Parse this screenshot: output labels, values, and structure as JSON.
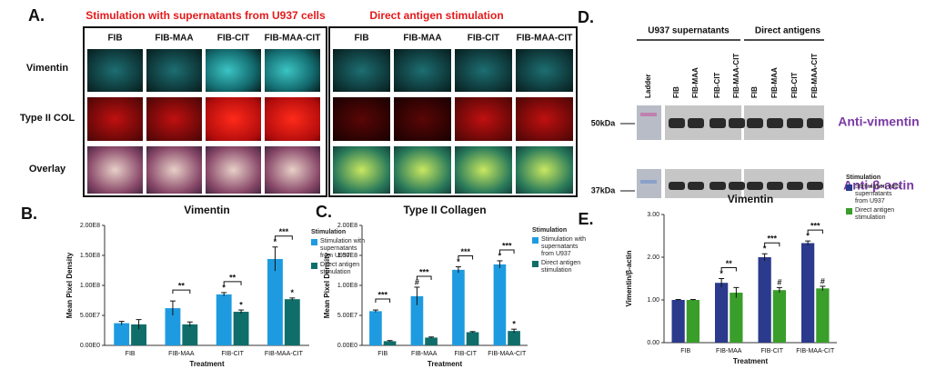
{
  "figure": {
    "panel_letters": [
      "A.",
      "B.",
      "C.",
      "D.",
      "E."
    ],
    "panel_a": {
      "headers": [
        "Stimulation with supernatants from U937 cells",
        "Direct antigen stimulation"
      ],
      "columns": [
        "FIB",
        "FIB-MAA",
        "FIB-CIT",
        "FIB-MAA-CIT",
        "FIB",
        "FIB-MAA",
        "FIB-CIT",
        "FIB-MAA-CIT"
      ],
      "rows": [
        "Vimentin",
        "Type II COL",
        "Overlay"
      ]
    },
    "panel_d": {
      "groups": [
        "U937 supernatants",
        "Direct antigens"
      ],
      "lanes": [
        "Ladder",
        "FIB",
        "FIB-MAA",
        "FIB-CIT",
        "FIB-MAA-CIT",
        "FIB",
        "FIB-MAA",
        "FIB-CIT",
        "FIB-MAA-CIT"
      ],
      "markers": [
        "50kDa",
        "37kDa"
      ],
      "antibodies": [
        "Anti-vimentin",
        "Anti-β-actin"
      ]
    }
  },
  "chart_data": [
    {
      "type": "bar",
      "title": "Vimentin",
      "ylabel": "Mean Pixel Density",
      "xlabel": "Treatment",
      "legend_title": "Stimulation",
      "categories": [
        "FIB",
        "FIB-MAA",
        "FIB-CIT",
        "FIB-MAA-CIT"
      ],
      "series": [
        {
          "name": "Stimulation with supernatants from U937",
          "color": "#1e9be0",
          "values": [
            37000000,
            62000000,
            85000000,
            144000000
          ],
          "errors": [
            3000000,
            12000000,
            3000000,
            20000000
          ],
          "markers": [
            null,
            null,
            "*",
            "*"
          ]
        },
        {
          "name": "Direct antigen stimulation",
          "color": "#0f6e6a",
          "values": [
            35000000,
            35000000,
            56000000,
            77000000
          ],
          "errors": [
            8000000,
            4000000,
            3000000,
            2000000
          ],
          "markers": [
            null,
            null,
            "*",
            "*"
          ]
        }
      ],
      "significance": [
        null,
        "**",
        "**",
        "***"
      ],
      "ylim": [
        0,
        200000000
      ],
      "yticks": [
        {
          "value": 0,
          "label": "0.00E0"
        },
        {
          "value": 50000000,
          "label": "5.00E7"
        },
        {
          "value": 100000000,
          "label": "1.00E8"
        },
        {
          "value": 150000000,
          "label": "1.50E8"
        },
        {
          "value": 200000000,
          "label": "2.00E8"
        }
      ]
    },
    {
      "type": "bar",
      "title": "Type II Collagen",
      "ylabel": "Mean Pixel Density",
      "xlabel": "Treatment",
      "legend_title": "Stimulation",
      "categories": [
        "FIB",
        "FIB-MAA",
        "FIB-CIT",
        "FIB-MAA-CIT"
      ],
      "series": [
        {
          "name": "Stimulation with supernatants from U937",
          "color": "#1e9be0",
          "values": [
            57000000,
            82000000,
            126000000,
            135000000
          ],
          "errors": [
            2000000,
            15000000,
            5000000,
            6000000
          ],
          "markers": [
            null,
            "#",
            "*",
            "*"
          ]
        },
        {
          "name": "Direct antigen stimulation",
          "color": "#0f6e6a",
          "values": [
            7000000,
            13000000,
            22000000,
            24000000
          ],
          "errors": [
            1000000,
            1000000,
            1000000,
            3000000
          ],
          "markers": [
            null,
            null,
            null,
            "*"
          ]
        }
      ],
      "significance": [
        "***",
        "***",
        "***",
        "***"
      ],
      "ylim": [
        0,
        200000000
      ],
      "yticks": [
        {
          "value": 0,
          "label": "0.00E0"
        },
        {
          "value": 50000000,
          "label": "5.00E7"
        },
        {
          "value": 100000000,
          "label": "1.00E8"
        },
        {
          "value": 150000000,
          "label": "1.50E8"
        },
        {
          "value": 200000000,
          "label": "2.00E8"
        }
      ]
    },
    {
      "type": "bar",
      "title": "Vimentin",
      "ylabel": "Vimentin/β-actin",
      "xlabel": "Treatment",
      "legend_title": "Stimulation",
      "categories": [
        "FIB",
        "FIB-MAA",
        "FIB-CIT",
        "FIB-MAA-CIT"
      ],
      "series": [
        {
          "name": "Stimulation with supernatants from U937",
          "color": "#2b3a8c",
          "values": [
            1.0,
            1.4,
            2.0,
            2.33
          ],
          "errors": [
            0.01,
            0.1,
            0.08,
            0.05
          ],
          "markers": [
            null,
            "*",
            "*",
            "*"
          ]
        },
        {
          "name": "Direct antigen stimulation",
          "color": "#3a9e2a",
          "values": [
            1.0,
            1.17,
            1.23,
            1.27
          ],
          "errors": [
            0.01,
            0.12,
            0.06,
            0.05
          ],
          "markers": [
            null,
            null,
            "#",
            "#"
          ]
        }
      ],
      "significance": [
        null,
        "**",
        "***",
        "***"
      ],
      "ylim": [
        0,
        3
      ],
      "yticks": [
        {
          "value": 0,
          "label": "0.00"
        },
        {
          "value": 1,
          "label": "1.00"
        },
        {
          "value": 2,
          "label": "2.00"
        },
        {
          "value": 3,
          "label": "3.00"
        }
      ]
    }
  ]
}
